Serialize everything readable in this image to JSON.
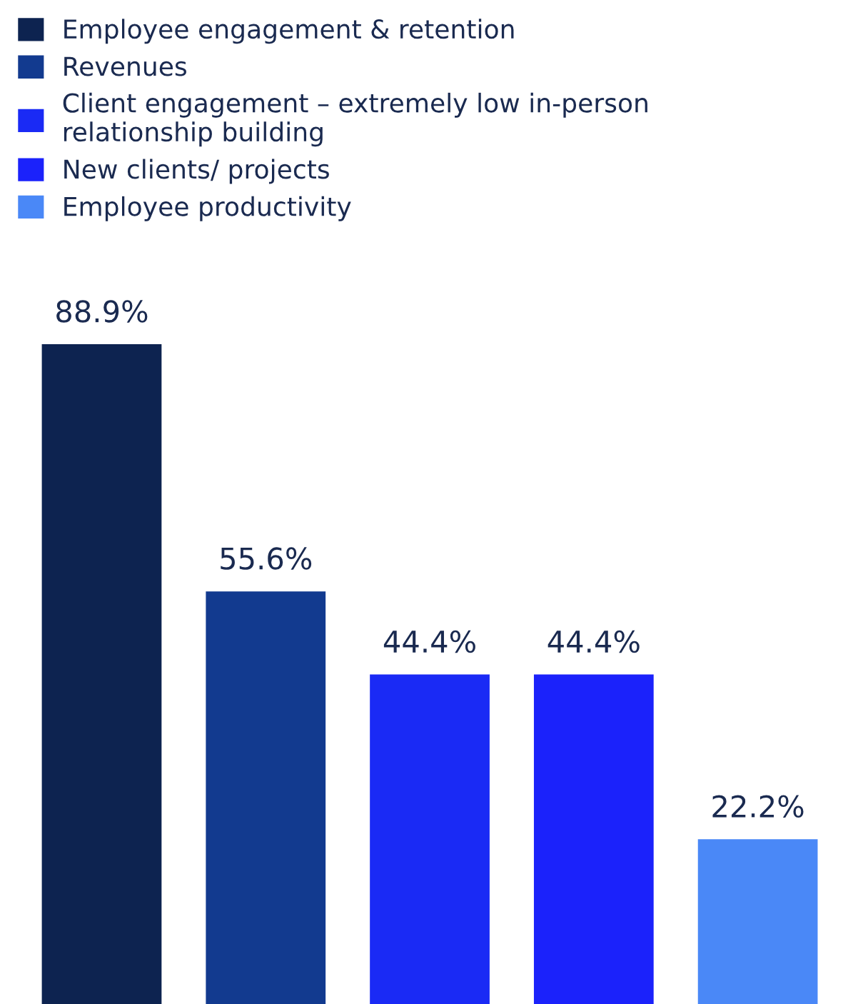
{
  "chart_data": {
    "type": "bar",
    "categories": [
      null,
      null,
      null,
      null,
      null
    ],
    "series": [
      {
        "name": "Employee engagement & retention",
        "color": "#0d2350",
        "values": [
          88.9,
          null,
          null,
          null,
          null
        ],
        "value_labels": [
          "88.9%",
          null,
          null,
          null,
          null
        ]
      },
      {
        "name": "Revenues",
        "color": "#123a8f",
        "values": [
          null,
          55.6,
          null,
          null,
          null
        ],
        "value_labels": [
          null,
          "55.6%",
          null,
          null,
          null
        ]
      },
      {
        "name": "Client engagement – extremely low in-person\nrelationship building",
        "color": "#1a2af5",
        "values": [
          null,
          null,
          44.4,
          null,
          null
        ],
        "value_labels": [
          null,
          null,
          "44.4%",
          null,
          null
        ]
      },
      {
        "name": "New clients/ projects",
        "color": "#1b22fb",
        "values": [
          null,
          null,
          null,
          44.4,
          null
        ],
        "value_labels": [
          null,
          null,
          null,
          "44.4%",
          null
        ]
      },
      {
        "name": "Employee productivity",
        "color": "#4a88f7",
        "values": [
          null,
          null,
          null,
          null,
          22.2
        ],
        "value_labels": [
          null,
          null,
          null,
          null,
          "22.2%"
        ]
      }
    ],
    "stacked": true,
    "grid": false,
    "legend": "top left"
  }
}
